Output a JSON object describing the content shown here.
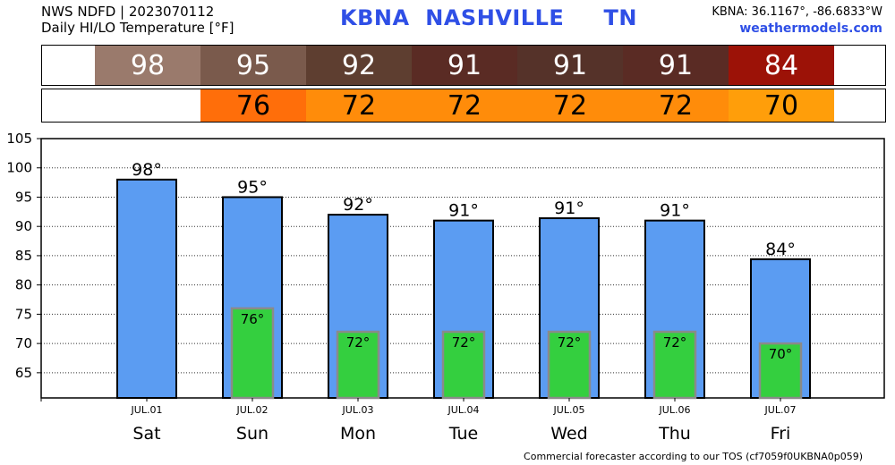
{
  "header": {
    "line1": "NWS NDFD | 2023070112",
    "line2": "Daily HI/LO Temperature [°F]",
    "station": "KBNA  NASHVILLE     TN",
    "coords": "KBNA: 36.1167°, -86.6833°W",
    "site": "weathermodels.com"
  },
  "hi_row": [
    {
      "value": "98",
      "color": "#9a7a6c"
    },
    {
      "value": "95",
      "color": "#7a5a4c"
    },
    {
      "value": "92",
      "color": "#5e3e30"
    },
    {
      "value": "91",
      "color": "#5a2b24"
    },
    {
      "value": "91",
      "color": "#553229"
    },
    {
      "value": "91",
      "color": "#5a2b24"
    },
    {
      "value": "84",
      "color": "#9c1207"
    }
  ],
  "lo_row": [
    {
      "value": "",
      "color": "#ffffff"
    },
    {
      "value": "76",
      "color": "#ff6e0a"
    },
    {
      "value": "72",
      "color": "#ff8c0a"
    },
    {
      "value": "72",
      "color": "#ff8c0a"
    },
    {
      "value": "72",
      "color": "#ff8c0a"
    },
    {
      "value": "72",
      "color": "#ff8c0a"
    },
    {
      "value": "70",
      "color": "#ff9e0a"
    }
  ],
  "chart_data": {
    "type": "bar",
    "categories": [
      "JUL.01",
      "JUL.02",
      "JUL.03",
      "JUL.04",
      "JUL.05",
      "JUL.06",
      "JUL.07"
    ],
    "days": [
      "Sat",
      "Sun",
      "Mon",
      "Tue",
      "Wed",
      "Thu",
      "Fri"
    ],
    "series": [
      {
        "values": [
          98,
          95,
          92,
          91,
          91.4,
          91,
          84.4
        ],
        "color": "#5b9cf2"
      },
      {
        "values": [
          null,
          76,
          72,
          72,
          72,
          72,
          70
        ],
        "color": "#34cf3f"
      }
    ],
    "hi_labels": [
      "98°",
      "95°",
      "92°",
      "91°",
      "91°",
      "91°",
      "84°"
    ],
    "lo_labels": [
      "",
      "76°",
      "72°",
      "72°",
      "72°",
      "72°",
      "70°"
    ],
    "yticks": [
      "65",
      "70",
      "75",
      "80",
      "85",
      "90",
      "95",
      "100",
      "105"
    ],
    "ylim": [
      60.7,
      105
    ],
    "grid": true
  },
  "footer": "Commercial forecaster according to our TOS (cf7059f0UKBNA0p059)"
}
